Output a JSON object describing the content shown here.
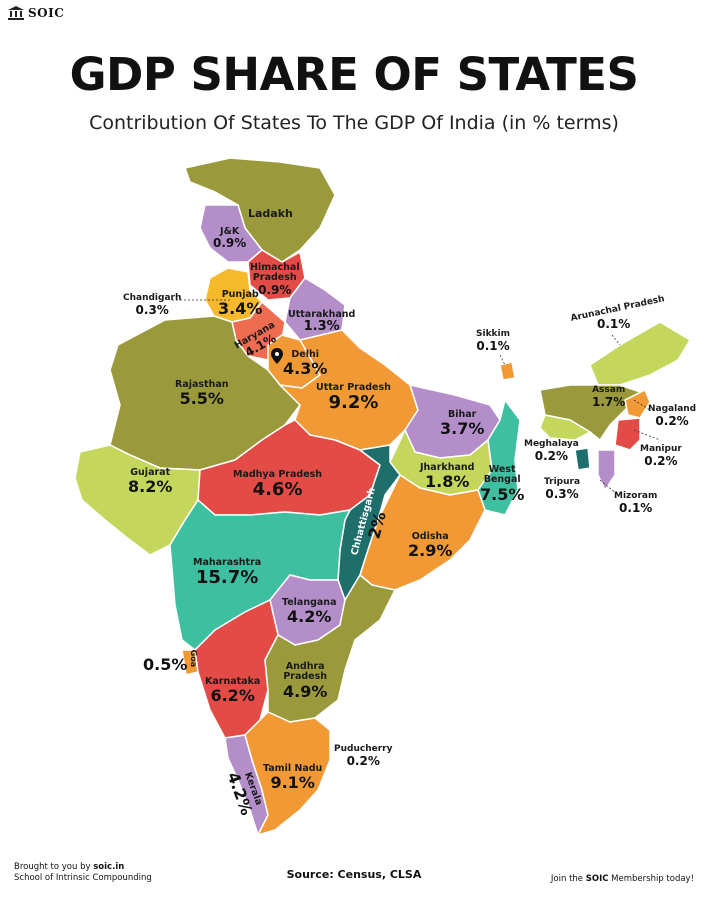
{
  "brand": {
    "name": "SOIC"
  },
  "title": "GDP SHARE OF STATES",
  "subtitle": "Contribution Of States To The GDP Of India (in % terms)",
  "states": {
    "ladakh": {
      "name": "Ladakh"
    },
    "jk": {
      "name": "J&K",
      "value": "0.9%"
    },
    "himachal": {
      "name": "Himachal Pradesh",
      "name1": "Himachal",
      "name2": "Pradesh",
      "value": "0.9%"
    },
    "punjab": {
      "name": "Punjab",
      "value": "3.4%"
    },
    "chandigarh": {
      "name": "Chandigarh",
      "value": "0.3%"
    },
    "uttarakhand": {
      "name": "Uttarakhand",
      "value": "1.3%"
    },
    "haryana": {
      "name": "Haryana",
      "value": "4.1%"
    },
    "delhi": {
      "name": "Delhi",
      "value": "4.3%"
    },
    "rajasthan": {
      "name": "Rajasthan",
      "value": "5.5%"
    },
    "uttar_pradesh": {
      "name": "Uttar Pradesh",
      "value": "9.2%"
    },
    "bihar": {
      "name": "Bihar",
      "value": "3.7%"
    },
    "sikkim": {
      "name": "Sikkim",
      "value": "0.1%"
    },
    "arunachal": {
      "name": "Arunachal Pradesh",
      "value": "0.1%"
    },
    "assam": {
      "name": "Assam",
      "value": "1.7%"
    },
    "nagaland": {
      "name": "Nagaland",
      "value": "0.2%"
    },
    "meghalaya": {
      "name": "Meghalaya",
      "value": "0.2%"
    },
    "manipur": {
      "name": "Manipur",
      "value": "0.2%"
    },
    "tripura": {
      "name": "Tripura",
      "value": "0.3%"
    },
    "mizoram": {
      "name": "Mizoram",
      "value": "0.1%"
    },
    "gujarat": {
      "name": "Gujarat",
      "value": "8.2%"
    },
    "madhya_pradesh": {
      "name": "Madhya Pradesh",
      "value": "4.6%"
    },
    "jharkhand": {
      "name": "Jharkhand",
      "value": "1.8%"
    },
    "west_bengal": {
      "name": "West Bengal",
      "name1": "West",
      "name2": "Bengal",
      "value": "7.5%"
    },
    "chhattisgarh": {
      "name": "Chhattisgarh",
      "value": "2%"
    },
    "odisha": {
      "name": "Odisha",
      "value": "2.9%"
    },
    "maharashtra": {
      "name": "Maharashtra",
      "value": "15.7%"
    },
    "telangana": {
      "name": "Telangana",
      "value": "4.2%"
    },
    "goa": {
      "name": "Goa",
      "value": "0.5%"
    },
    "karnataka": {
      "name": "Karnataka",
      "value": "6.2%"
    },
    "andhra": {
      "name": "Andhra Pradesh",
      "name1": "Andhra",
      "name2": "Pradesh",
      "value": "4.9%"
    },
    "puducherry": {
      "name": "Puducherry",
      "value": "0.2%"
    },
    "tamil_nadu": {
      "name": "Tamil Nadu",
      "value": "9.1%"
    },
    "kerala": {
      "name": "Kerala",
      "value": "4.2%"
    }
  },
  "colors": {
    "olive": "#9a9a3c",
    "purple": "#b48ec9",
    "red": "#e34b46",
    "orange": "#f19a35",
    "yellow": "#f6b92c",
    "lime": "#c4d65c",
    "teal": "#3ebfa0",
    "darkteal": "#1e6f6c",
    "salmon": "#f06c50"
  },
  "footer": {
    "brought_by": "Brought to you by",
    "site": "soic.in",
    "org": "School of Intrinsic Compounding",
    "source": "Source: Census, CLSA",
    "join_pre": "Join the",
    "join_brand": "SOIC",
    "join_post": "Membership today!"
  }
}
